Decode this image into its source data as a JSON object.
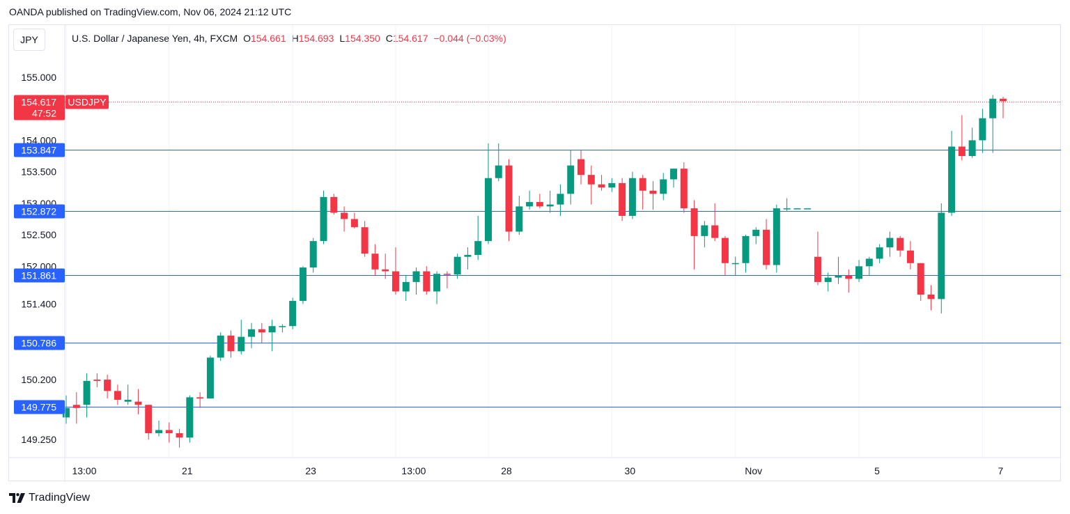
{
  "header": {
    "publish_line": "OANDA published on TradingView.com, Nov 06, 2024 21:12 UTC"
  },
  "symbol_box": {
    "label": "JPY"
  },
  "legend": {
    "instrument": "U.S. Dollar / Japanese Yen, 4h, FXCM",
    "o_label": "O",
    "o_value": "154.661",
    "h_label": "H",
    "h_value": "154.693",
    "l_label": "L",
    "l_value": "154.350",
    "c_label": "C",
    "c_value": "154.617",
    "change": "−0.044 (−0.03%)"
  },
  "footer": {
    "brand": "TradingView",
    "logo_icon": "tradingview-logo-icon"
  },
  "colors": {
    "up": "#089981",
    "down": "#f23645",
    "level_line": "#2962ff",
    "level_label_bg": "#2962ff",
    "price_label_bg": "#f23645",
    "grid": "#f0f3fa"
  },
  "chart_data": {
    "type": "candlestick",
    "symbol": "USDJPY",
    "interval": "4h",
    "ylim": [
      149.0,
      155.5
    ],
    "y_ticks": [
      "149.250",
      "149.775",
      "150.200",
      "151.400",
      "152.000",
      "152.500",
      "153.000",
      "153.500",
      "154.000",
      "155.000"
    ],
    "x_ticks": [
      {
        "label": "13:00",
        "bar": 0
      },
      {
        "label": "21",
        "bar": 10
      },
      {
        "label": "23",
        "bar": 22
      },
      {
        "label": "13:00",
        "bar": 32
      },
      {
        "label": "28",
        "bar": 41
      },
      {
        "label": "30",
        "bar": 53
      },
      {
        "label": "Nov",
        "bar": 65
      },
      {
        "label": "5",
        "bar": 77
      },
      {
        "label": "7",
        "bar": 89
      }
    ],
    "current_price": {
      "label": "154.617",
      "countdown": "47:52",
      "tag": "USDJPY",
      "value": 154.617
    },
    "horizontal_levels": [
      {
        "label": "153.847",
        "value": 153.847
      },
      {
        "label": "152.872",
        "value": 152.872
      },
      {
        "label": "151.861",
        "value": 151.861
      },
      {
        "label": "150.786",
        "value": 150.786
      },
      {
        "label": "149.775",
        "value": 149.775
      }
    ],
    "candles": [
      [
        149.6,
        149.95,
        149.5,
        149.75
      ],
      [
        149.8,
        150.0,
        149.5,
        149.75
      ],
      [
        149.8,
        150.3,
        149.6,
        150.18
      ],
      [
        150.2,
        150.3,
        150.08,
        150.18
      ],
      [
        150.2,
        150.28,
        149.9,
        150.02
      ],
      [
        150.02,
        150.12,
        149.8,
        149.88
      ],
      [
        149.85,
        150.12,
        149.8,
        149.88
      ],
      [
        149.85,
        150.05,
        149.65,
        149.8
      ],
      [
        149.8,
        149.8,
        149.25,
        149.35
      ],
      [
        149.35,
        149.55,
        149.3,
        149.4
      ],
      [
        149.4,
        149.52,
        149.2,
        149.35
      ],
      [
        149.35,
        149.42,
        149.12,
        149.28
      ],
      [
        149.28,
        149.95,
        149.2,
        149.92
      ],
      [
        149.92,
        150.0,
        149.75,
        149.9
      ],
      [
        149.9,
        150.58,
        149.9,
        150.55
      ],
      [
        150.55,
        150.95,
        150.5,
        150.9
      ],
      [
        150.9,
        150.98,
        150.55,
        150.65
      ],
      [
        150.65,
        151.15,
        150.6,
        150.88
      ],
      [
        150.88,
        151.1,
        150.7,
        151.0
      ],
      [
        151.0,
        151.1,
        150.78,
        150.95
      ],
      [
        150.95,
        151.15,
        150.65,
        151.05
      ],
      [
        151.05,
        151.08,
        150.95,
        151.05
      ],
      [
        151.05,
        151.5,
        151.0,
        151.45
      ],
      [
        151.45,
        152.0,
        151.4,
        151.98
      ],
      [
        151.98,
        152.45,
        151.9,
        152.4
      ],
      [
        152.4,
        153.2,
        152.35,
        153.1
      ],
      [
        153.1,
        153.15,
        152.82,
        152.85
      ],
      [
        152.85,
        152.95,
        152.55,
        152.75
      ],
      [
        152.75,
        152.85,
        152.6,
        152.62
      ],
      [
        152.62,
        152.72,
        152.15,
        152.2
      ],
      [
        152.2,
        152.35,
        151.85,
        151.95
      ],
      [
        151.95,
        152.2,
        151.8,
        151.92
      ],
      [
        151.92,
        152.3,
        151.55,
        151.6
      ],
      [
        151.6,
        151.85,
        151.45,
        151.75
      ],
      [
        151.75,
        151.98,
        151.55,
        151.92
      ],
      [
        151.92,
        152.0,
        151.55,
        151.6
      ],
      [
        151.6,
        151.92,
        151.4,
        151.88
      ],
      [
        151.88,
        151.92,
        151.65,
        151.87
      ],
      [
        151.87,
        152.2,
        151.8,
        152.15
      ],
      [
        152.15,
        152.3,
        151.95,
        152.18
      ],
      [
        152.18,
        152.8,
        152.1,
        152.4
      ],
      [
        152.4,
        153.95,
        152.35,
        153.4
      ],
      [
        153.4,
        153.95,
        153.35,
        153.6
      ],
      [
        153.6,
        153.7,
        152.4,
        152.55
      ],
      [
        152.55,
        153.12,
        152.5,
        152.95
      ],
      [
        152.95,
        153.2,
        152.9,
        153.02
      ],
      [
        153.02,
        153.15,
        152.92,
        152.95
      ],
      [
        152.95,
        153.2,
        152.85,
        152.98
      ],
      [
        152.98,
        153.3,
        152.8,
        153.15
      ],
      [
        153.15,
        153.85,
        152.98,
        153.6
      ],
      [
        153.7,
        153.85,
        153.3,
        153.45
      ],
      [
        153.45,
        153.6,
        152.98,
        153.3
      ],
      [
        153.3,
        153.45,
        153.2,
        153.25
      ],
      [
        153.25,
        153.4,
        153.18,
        153.32
      ],
      [
        153.32,
        153.4,
        152.72,
        152.8
      ],
      [
        152.8,
        153.5,
        152.75,
        153.4
      ],
      [
        153.4,
        153.45,
        152.9,
        153.2
      ],
      [
        153.2,
        153.35,
        152.9,
        153.15
      ],
      [
        153.15,
        153.48,
        153.05,
        153.38
      ],
      [
        153.38,
        153.55,
        153.25,
        153.55
      ],
      [
        153.55,
        153.65,
        152.85,
        152.92
      ],
      [
        152.92,
        153.05,
        151.95,
        152.48
      ],
      [
        152.48,
        152.72,
        152.3,
        152.65
      ],
      [
        152.65,
        153.0,
        152.4,
        152.45
      ],
      [
        152.45,
        152.48,
        151.85,
        152.05
      ],
      [
        152.05,
        152.15,
        151.85,
        152.05
      ],
      [
        152.05,
        152.5,
        151.9,
        152.48
      ],
      [
        152.48,
        152.62,
        152.35,
        152.58
      ],
      [
        152.58,
        152.75,
        151.95,
        152.02
      ],
      [
        152.02,
        152.98,
        151.9,
        152.92
      ],
      [
        152.92,
        153.08,
        152.88,
        152.92
      ],
      [
        152.92,
        152.92,
        152.92,
        152.92
      ],
      [
        152.92,
        152.92,
        152.92,
        152.92
      ],
      [
        152.15,
        152.55,
        151.7,
        151.75
      ],
      [
        151.75,
        151.9,
        151.6,
        151.82
      ],
      [
        151.82,
        152.15,
        151.72,
        151.85
      ],
      [
        151.85,
        151.95,
        151.58,
        151.8
      ],
      [
        151.8,
        152.1,
        151.75,
        152.0
      ],
      [
        152.0,
        152.15,
        151.85,
        152.12
      ],
      [
        152.12,
        152.35,
        152.05,
        152.3
      ],
      [
        152.3,
        152.55,
        152.15,
        152.45
      ],
      [
        152.45,
        152.48,
        152.15,
        152.25
      ],
      [
        152.25,
        152.4,
        151.95,
        152.05
      ],
      [
        152.05,
        152.05,
        151.45,
        151.55
      ],
      [
        151.55,
        151.7,
        151.3,
        151.48
      ],
      [
        151.48,
        153.0,
        151.25,
        152.85
      ],
      [
        152.85,
        154.15,
        152.8,
        153.9
      ],
      [
        153.9,
        154.4,
        153.68,
        153.75
      ],
      [
        153.75,
        154.2,
        153.72,
        154.0
      ],
      [
        154.0,
        154.5,
        153.8,
        154.35
      ],
      [
        154.35,
        154.72,
        153.8,
        154.66
      ],
      [
        154.66,
        154.69,
        154.35,
        154.62
      ]
    ]
  }
}
